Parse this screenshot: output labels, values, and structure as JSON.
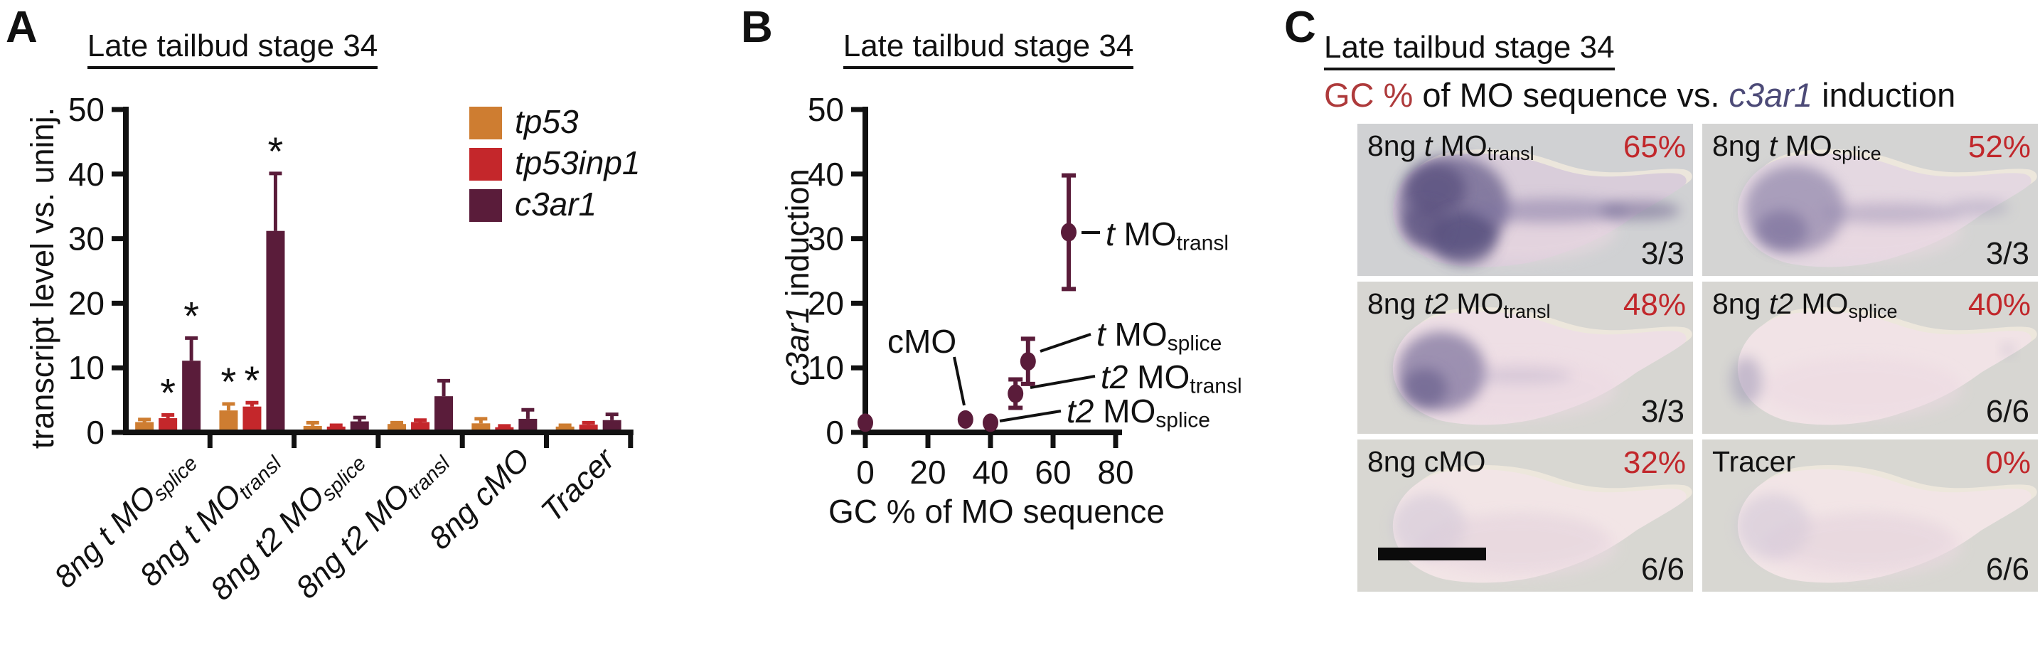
{
  "panel_a": {
    "label": "A",
    "sig_marker": "*",
    "legend": [
      {
        "label": "tp53",
        "color": "#CE7D31"
      },
      {
        "label": "tp53inp1",
        "color": "#C4272B"
      },
      {
        "label": "c3ar1",
        "color": "#5A1C3A"
      }
    ]
  },
  "panel_b": {
    "label": "B"
  },
  "chart_data": [
    {
      "type": "bar",
      "panel": "A",
      "title": "Late tailbud stage 34",
      "ylabel": "transcript level vs. uninj.",
      "ylim": [
        0,
        50
      ],
      "yticks": [
        0,
        10,
        20,
        30,
        40,
        50
      ],
      "grid": false,
      "legend_position": "upper-right",
      "categories": [
        {
          "text": "8ng t MO",
          "sub": "splice",
          "italic": true
        },
        {
          "text": "8ng t MO",
          "sub": "transl",
          "italic": true
        },
        {
          "text": "8ng t2 MO",
          "sub": "splice",
          "italic": true
        },
        {
          "text": "8ng t2 MO",
          "sub": "transl",
          "italic": true
        },
        {
          "text": "8ng cMO",
          "sub": "",
          "italic": true
        },
        {
          "text": "Tracer",
          "sub": "",
          "italic": true
        }
      ],
      "series": [
        {
          "name": "tp53",
          "color": "#CE7D31",
          "values": [
            1.6,
            3.4,
            1.0,
            1.3,
            1.4,
            0.9
          ],
          "errors": [
            0.4,
            1.0,
            0.5,
            0.2,
            0.7,
            0.2
          ],
          "significant": [
            false,
            true,
            false,
            false,
            false,
            false
          ]
        },
        {
          "name": "tp53inp1",
          "color": "#C4272B",
          "values": [
            2.2,
            4.0,
            0.9,
            1.6,
            0.8,
            1.2
          ],
          "errors": [
            0.5,
            0.6,
            0.2,
            0.3,
            0.2,
            0.3
          ],
          "significant": [
            true,
            true,
            false,
            false,
            false,
            false
          ]
        },
        {
          "name": "c3ar1",
          "color": "#5A1C3A",
          "values": [
            11.1,
            31.2,
            1.7,
            5.6,
            2.1,
            1.9
          ],
          "errors": [
            3.5,
            8.9,
            0.6,
            2.4,
            1.4,
            0.9
          ],
          "significant": [
            true,
            true,
            false,
            false,
            false,
            false
          ]
        }
      ]
    },
    {
      "type": "scatter",
      "panel": "B",
      "title": "Late tailbud stage 34",
      "xlabel": "GC % of MO sequence",
      "ylabel_parts": [
        {
          "t": "c3ar1",
          "i": true
        },
        {
          "t": " induction"
        }
      ],
      "xlim": [
        0,
        80
      ],
      "xticks": [
        0,
        20,
        40,
        60,
        80
      ],
      "ylim": [
        0,
        50
      ],
      "yticks": [
        0,
        10,
        20,
        30,
        40,
        50
      ],
      "marker_color": "#5A1C3A",
      "points": [
        {
          "x": 0,
          "y": 1.5,
          "err": 0,
          "label": []
        },
        {
          "x": 32,
          "y": 2,
          "err": 0,
          "label": [
            {
              "t": "cMO"
            }
          ]
        },
        {
          "x": 40,
          "y": 1.5,
          "err": 0,
          "label": [
            {
              "t": "t2",
              "i": true
            },
            {
              "t": " MO"
            },
            {
              "t": "splice",
              "sub": true
            }
          ]
        },
        {
          "x": 48,
          "y": 6,
          "err": 2.2,
          "label": [
            {
              "t": "t2",
              "i": true
            },
            {
              "t": " MO"
            },
            {
              "t": "transl",
              "sub": true
            }
          ]
        },
        {
          "x": 52,
          "y": 11,
          "err": 3.5,
          "label": [
            {
              "t": "t",
              "i": true
            },
            {
              "t": " MO"
            },
            {
              "t": "splice",
              "sub": true
            }
          ]
        },
        {
          "x": 65,
          "y": 31,
          "err": 8.8,
          "label": [
            {
              "t": "t",
              "i": true
            },
            {
              "t": " MO"
            },
            {
              "t": "transl",
              "sub": true
            }
          ]
        }
      ]
    }
  ],
  "panel_c": {
    "label": "C",
    "title": "Late tailbud stage 34",
    "subtitle": [
      {
        "t": "GC %",
        "color": "#AE3A3B"
      },
      {
        "t": " of MO sequence vs. "
      },
      {
        "t": "c3ar1",
        "color": "#4C4A77",
        "i": true
      },
      {
        "t": " induction"
      }
    ],
    "percent_color": "#C1272B",
    "cells": [
      {
        "treatment": [
          {
            "t": "8ng "
          },
          {
            "t": "t",
            "i": true
          },
          {
            "t": " MO"
          },
          {
            "t": "transl",
            "sub": true
          }
        ],
        "gc_percent": "65%",
        "count": "3/3",
        "stain": "strong"
      },
      {
        "treatment": [
          {
            "t": "8ng "
          },
          {
            "t": "t",
            "i": true
          },
          {
            "t": " MO"
          },
          {
            "t": "splice",
            "sub": true
          }
        ],
        "gc_percent": "52%",
        "count": "3/3",
        "stain": "moderate"
      },
      {
        "treatment": [
          {
            "t": "8ng "
          },
          {
            "t": "t2",
            "i": true
          },
          {
            "t": " MO"
          },
          {
            "t": "transl",
            "sub": true
          }
        ],
        "gc_percent": "48%",
        "count": "3/3",
        "stain": "head"
      },
      {
        "treatment": [
          {
            "t": "8ng "
          },
          {
            "t": "t2",
            "i": true
          },
          {
            "t": " MO"
          },
          {
            "t": "splice",
            "sub": true
          }
        ],
        "gc_percent": "40%",
        "count": "6/6",
        "stain": "faint"
      },
      {
        "treatment": [
          {
            "t": "8ng cMO"
          }
        ],
        "gc_percent": "32%",
        "count": "6/6",
        "stain": "minimal",
        "scalebar": true
      },
      {
        "treatment": [
          {
            "t": "Tracer"
          }
        ],
        "gc_percent": "0%",
        "count": "6/6",
        "stain": "minimal"
      }
    ]
  }
}
